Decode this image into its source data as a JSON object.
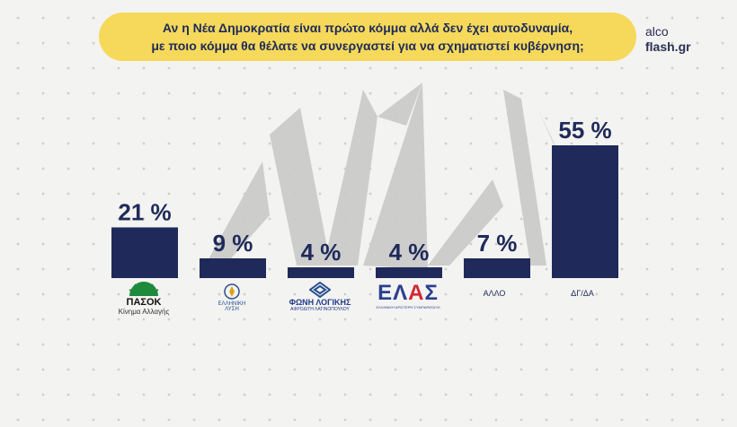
{
  "header": {
    "question_line1": "Αν η Νέα Δημοκρατία είναι πρώτο κόμμα αλλά δεν έχει αυτοδυναμία,",
    "question_line2": "με ποιο κόμμα θα θέλατε να συνεργαστεί για να σχηματιστεί κυβέρνηση;",
    "brand_top": "alco",
    "brand_bottom": "flash.gr"
  },
  "colors": {
    "bar": "#1f2a5a",
    "banner": "#f6d95a",
    "watermark": "#c9c9c9",
    "pasok_green": "#1e8a3c",
    "elas_blue": "#2a3f8f",
    "elas_red": "#d3282f"
  },
  "logos": {
    "pasok_name": "ΠΑΣΟΚ",
    "pasok_sub": "Κίνημα Αλλαγής",
    "el_name": "ΕΛΛΗΝΙΚΗ",
    "el_sub": "ΛΥΣΗ",
    "fl_name": "ΦΩΝΗ ΛΟΓΙΚΗΣ",
    "fl_sub": "ΑΦΡΟΔΙΤΗ ΛΑΤΙΝΟΠΟΥΛΟΥ",
    "elas_name": "ΕΛΑΣ",
    "elas_sub": "ΕΛΛΗΝΙΚΗ ΑΡΙΣΤΕΡΗ ΣΥΜΠΑΡΑΤΑΞΗ"
  },
  "chart_data": {
    "type": "bar",
    "categories": [
      "ΠΑΣΟΚ",
      "ΕΛΛΗΝΙΚΗ ΛΥΣΗ",
      "ΦΩΝΗ ΛΟΓΙΚΗΣ",
      "ΕΛΑΣ",
      "ΑΛΛΟ",
      "ΔΓ/ΔΑ"
    ],
    "values": [
      21,
      9,
      4,
      4,
      7,
      55
    ],
    "value_labels": [
      "21 %",
      "9 %",
      "4 %",
      "4 %",
      "7 %",
      "55 %"
    ],
    "ylim": [
      0,
      55
    ],
    "grid": false,
    "legend": "none"
  }
}
